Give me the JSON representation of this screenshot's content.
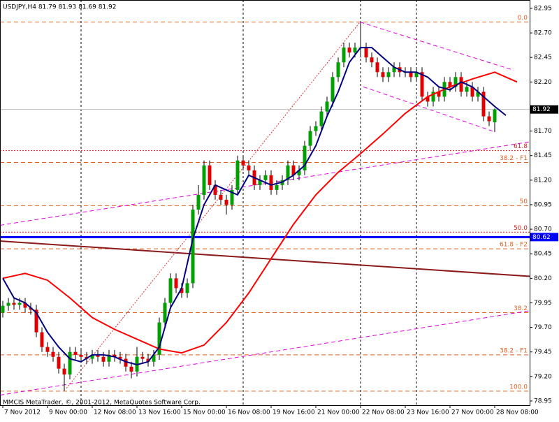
{
  "chart_data": {
    "type": "candlestick",
    "title": "USDJPY,H4  81.79 81.93 81.69 81.92",
    "footer": "MMCIS MetaTrader, ©, 2001-2012, MetaQuotes Software Corp.",
    "up_color": "#00a000",
    "down_color": "#e00000",
    "xlim": [
      -0.5,
      94.25
    ],
    "ylim": [
      78.907,
      83.035
    ],
    "xticks": [
      {
        "value": 0,
        "label": "7 Nov 2012"
      },
      {
        "value": 8,
        "label": "9 Nov 00:00"
      },
      {
        "value": 16,
        "label": "12 Nov 08:00"
      },
      {
        "value": 24,
        "label": "13 Nov 16:00"
      },
      {
        "value": 32,
        "label": "15 Nov 00:00"
      },
      {
        "value": 40,
        "label": "16 Nov 08:00"
      },
      {
        "value": 48,
        "label": "19 Nov 16:00"
      },
      {
        "value": 56,
        "label": "21 Nov 00:00"
      },
      {
        "value": 64,
        "label": "22 Nov 08:00"
      },
      {
        "value": 72,
        "label": "23 Nov 16:00"
      },
      {
        "value": 80,
        "label": "27 Nov 00:00"
      },
      {
        "value": 88,
        "label": "28 Nov 08:00"
      }
    ],
    "yticks": [
      82.95,
      {
        "value": 82.7,
        "label": "82.70"
      },
      82.45,
      {
        "value": 82.2,
        "label": "82.20"
      },
      {
        "value": 81.7,
        "label": "81.70"
      },
      81.45,
      {
        "value": 81.2,
        "label": "81.20"
      },
      80.95,
      {
        "value": 80.7,
        "label": "80.70"
      },
      80.45,
      {
        "value": 80.2,
        "label": "80.20"
      },
      79.95,
      {
        "value": 79.7,
        "label": "79.70"
      },
      79.45,
      {
        "value": 79.2,
        "label": "79.20"
      },
      78.95
    ],
    "open": [
      79.85,
      79.92,
      79.95,
      79.93,
      79.95,
      79.9,
      79.88,
      79.65,
      79.5,
      79.45,
      79.4,
      79.28,
      79.22,
      79.45,
      79.42,
      79.4,
      79.38,
      79.42,
      79.4,
      79.35,
      79.42,
      79.4,
      79.38,
      79.3,
      79.25,
      79.4,
      79.38,
      79.35,
      79.42,
      79.75,
      79.95,
      80.2,
      80.1,
      80.05,
      80.15,
      80.9,
      81.05,
      81.35,
      81.15,
      81.05,
      81.0,
      80.95,
      81.1,
      81.4,
      81.35,
      81.3,
      81.15,
      81.2,
      81.25,
      81.1,
      81.15,
      81.2,
      81.35,
      81.25,
      81.3,
      81.55,
      81.7,
      81.75,
      81.9,
      82.0,
      82.25,
      82.4,
      82.55,
      82.5,
      82.55,
      82.55,
      82.45,
      82.4,
      82.3,
      82.25,
      82.3,
      82.35,
      82.3,
      82.3,
      82.25,
      82.3,
      82.05,
      82.0,
      82.1,
      82.05,
      82.2,
      82.15,
      82.25,
      82.1,
      82.15,
      82.05,
      82.1,
      81.85,
      81.79
    ],
    "high": [
      79.97,
      80.0,
      80.0,
      80.0,
      80.0,
      79.95,
      79.93,
      79.7,
      79.55,
      79.5,
      79.45,
      79.33,
      79.5,
      79.5,
      79.47,
      79.45,
      79.47,
      79.47,
      79.45,
      79.47,
      79.47,
      79.45,
      79.43,
      79.35,
      79.5,
      79.45,
      79.43,
      79.47,
      79.8,
      80.0,
      80.25,
      80.25,
      80.15,
      80.2,
      80.95,
      81.15,
      81.4,
      81.4,
      81.2,
      81.1,
      81.05,
      81.15,
      81.45,
      81.45,
      81.4,
      81.35,
      81.25,
      81.3,
      81.3,
      81.2,
      81.25,
      81.4,
      81.4,
      81.35,
      81.6,
      81.75,
      81.8,
      81.95,
      82.05,
      82.3,
      82.45,
      82.6,
      82.6,
      82.6,
      82.8,
      82.6,
      82.5,
      82.45,
      82.35,
      82.35,
      82.4,
      82.4,
      82.35,
      82.35,
      82.35,
      82.35,
      82.1,
      82.15,
      82.15,
      82.25,
      82.25,
      82.3,
      82.3,
      82.2,
      82.2,
      82.15,
      82.15,
      81.9,
      81.93
    ],
    "low": [
      79.8,
      79.87,
      79.88,
      79.88,
      79.85,
      79.83,
      79.6,
      79.45,
      79.4,
      79.35,
      79.23,
      79.05,
      79.17,
      79.37,
      79.35,
      79.33,
      79.33,
      79.35,
      79.3,
      79.3,
      79.35,
      79.33,
      79.25,
      79.18,
      79.2,
      79.33,
      79.3,
      79.3,
      79.37,
      79.7,
      79.9,
      80.05,
      80.0,
      80.0,
      80.1,
      80.85,
      81.0,
      81.1,
      81.0,
      80.95,
      80.85,
      80.9,
      81.05,
      81.3,
      81.25,
      81.1,
      81.1,
      81.15,
      81.05,
      81.05,
      81.1,
      81.15,
      81.2,
      81.2,
      81.25,
      81.5,
      81.65,
      81.7,
      81.85,
      81.95,
      82.2,
      82.35,
      82.45,
      82.45,
      82.45,
      82.4,
      82.35,
      82.25,
      82.2,
      82.2,
      82.25,
      82.25,
      82.25,
      82.2,
      82.2,
      82.0,
      81.95,
      81.95,
      82.0,
      82.0,
      82.1,
      82.1,
      82.05,
      82.05,
      82.0,
      82.0,
      81.8,
      81.75,
      81.69
    ],
    "close": [
      79.92,
      79.95,
      79.93,
      79.95,
      79.9,
      79.88,
      79.65,
      79.5,
      79.45,
      79.4,
      79.28,
      79.22,
      79.45,
      79.42,
      79.4,
      79.38,
      79.42,
      79.4,
      79.35,
      79.42,
      79.4,
      79.38,
      79.3,
      79.25,
      79.4,
      79.38,
      79.35,
      79.42,
      79.75,
      79.95,
      80.2,
      80.1,
      80.05,
      80.15,
      80.9,
      81.05,
      81.35,
      81.15,
      81.05,
      81.0,
      80.95,
      81.1,
      81.4,
      81.35,
      81.3,
      81.15,
      81.2,
      81.25,
      81.1,
      81.15,
      81.2,
      81.35,
      81.25,
      81.3,
      81.55,
      81.7,
      81.75,
      81.9,
      82.0,
      82.25,
      82.4,
      82.55,
      82.5,
      82.55,
      82.55,
      82.45,
      82.4,
      82.3,
      82.25,
      82.3,
      82.35,
      82.3,
      82.3,
      82.25,
      82.3,
      82.05,
      82.0,
      82.1,
      82.05,
      82.2,
      82.15,
      82.25,
      82.1,
      82.15,
      82.05,
      82.1,
      81.85,
      81.8,
      81.92
    ],
    "indicators": [
      {
        "color": "#ff0000",
        "width": 2,
        "x": [
          0,
          4,
          8,
          12,
          16,
          20,
          24,
          28,
          32,
          36,
          40,
          44,
          48,
          52,
          56,
          60,
          64,
          68,
          72,
          76,
          80,
          84,
          88,
          92
        ],
        "values": [
          80.2,
          80.25,
          80.18,
          80.0,
          79.8,
          79.68,
          79.58,
          79.48,
          79.44,
          79.52,
          79.75,
          80.05,
          80.4,
          80.75,
          81.05,
          81.28,
          81.47,
          81.67,
          81.88,
          82.05,
          82.15,
          82.23,
          82.3,
          82.2
        ]
      },
      {
        "color": "#000080",
        "width": 2,
        "x": [
          0,
          2,
          4,
          6,
          8,
          10,
          12,
          14,
          16,
          18,
          20,
          22,
          24,
          26,
          28,
          30,
          32,
          34,
          36,
          38,
          40,
          42,
          44,
          46,
          48,
          50,
          52,
          54,
          56,
          58,
          60,
          62,
          64,
          66,
          68,
          70,
          72,
          74,
          76,
          78,
          80,
          82,
          84,
          86,
          88,
          90
        ],
        "values": [
          80.2,
          80.0,
          79.95,
          79.85,
          79.65,
          79.5,
          79.38,
          79.35,
          79.42,
          79.42,
          79.4,
          79.35,
          79.32,
          79.35,
          79.5,
          79.9,
          80.1,
          80.6,
          80.95,
          81.15,
          81.1,
          81.05,
          81.25,
          81.2,
          81.15,
          81.18,
          81.25,
          81.35,
          81.55,
          81.85,
          82.1,
          82.4,
          82.55,
          82.55,
          82.45,
          82.35,
          82.3,
          82.3,
          82.25,
          82.15,
          82.12,
          82.2,
          82.15,
          82.05,
          81.95,
          81.86
        ]
      }
    ],
    "trendlines": [
      {
        "color": "#8b1a1a",
        "style": "solid",
        "x": [
          -0.5,
          94.25
        ],
        "values": [
          80.58,
          80.22
        ]
      },
      {
        "color": "#e000e0",
        "style": "dashed",
        "x": [
          -0.5,
          94.25
        ],
        "values": [
          80.74,
          81.59
        ]
      },
      {
        "color": "#e000e0",
        "style": "dashed",
        "x": [
          -0.5,
          94.25
        ],
        "values": [
          79.01,
          79.87
        ]
      },
      {
        "color": "#e000e0",
        "style": "dashed",
        "x": [
          63.9,
          91.4
        ],
        "values": [
          82.81,
          82.32
        ]
      },
      {
        "color": "#e000e0",
        "style": "dashed",
        "x": [
          64.5,
          87.6
        ],
        "values": [
          82.15,
          81.7
        ]
      },
      {
        "color": "#e03030",
        "style": "dotted",
        "x": [
          11.4,
          63.9
        ],
        "values": [
          79.08,
          82.81
        ]
      }
    ],
    "vlines": [
      14,
      43,
      64,
      74
    ],
    "hlines": [
      {
        "value": 82.81,
        "label": "0.0",
        "color": "#e06020",
        "style": "dashed"
      },
      {
        "value": 81.5,
        "label": "61.8",
        "color": "#d02020",
        "style": "dotted"
      },
      {
        "value": 81.38,
        "label": "38.2 - F1",
        "color": "#e06020",
        "style": "dashed"
      },
      {
        "value": 80.94,
        "label": "50",
        "color": "#e06020",
        "style": "dashed"
      },
      {
        "value": 80.67,
        "label": "50.0",
        "color": "#d02020",
        "style": "dotted"
      },
      {
        "value": 80.5,
        "label": "61.8 - F2",
        "color": "#e06020",
        "style": "dashed"
      },
      {
        "value": 79.85,
        "label": "38.2",
        "color": "#e06020",
        "style": "dashed"
      },
      {
        "value": 79.42,
        "label": "38.2 - F1",
        "color": "#e06020",
        "style": "dashed"
      },
      {
        "value": 79.05,
        "label": "100.0",
        "color": "#e06020",
        "style": "dashed"
      }
    ],
    "levels": [
      {
        "value": 81.92,
        "color": "#c0c0c0",
        "tag_color": "#000000",
        "width": 1
      },
      {
        "value": 80.62,
        "color": "#0000ff",
        "tag_color": "#0000ff",
        "width": 3
      }
    ]
  }
}
